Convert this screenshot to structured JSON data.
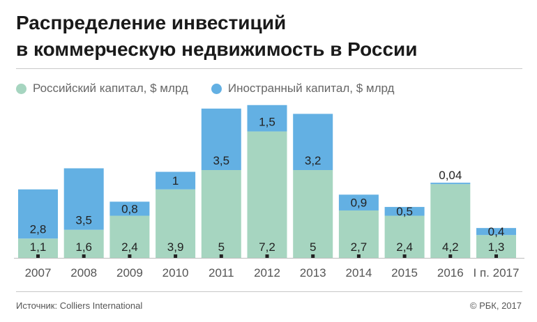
{
  "title_line1": "Распределение инвестиций",
  "title_line2": "в коммерческую недвижимость в России",
  "colors": {
    "russian": "#a6d5c0",
    "foreign": "#63b0e3"
  },
  "footer": {
    "source": "Источник: Colliers International",
    "copyright": "© РБК, 2017"
  },
  "chart_data": {
    "type": "bar",
    "stacked": true,
    "categories": [
      "2007",
      "2008",
      "2009",
      "2010",
      "2011",
      "2012",
      "2013",
      "2014",
      "2015",
      "2016",
      "I п. 2017"
    ],
    "series": [
      {
        "name": "Российский капитал, $ млрд",
        "values": [
          1.1,
          1.6,
          2.4,
          3.9,
          5,
          7.2,
          5,
          2.7,
          2.4,
          4.2,
          1.3
        ],
        "labels": [
          "1,1",
          "1,6",
          "2,4",
          "3,9",
          "5",
          "7,2",
          "5",
          "2,7",
          "2,4",
          "4,2",
          "1,3"
        ]
      },
      {
        "name": "Иностранный капитал, $ млрд",
        "values": [
          2.8,
          3.5,
          0.8,
          1,
          3.5,
          1.5,
          3.2,
          0.9,
          0.5,
          0.04,
          0.4
        ],
        "labels": [
          "2,8",
          "3,5",
          "0,8",
          "1",
          "3,5",
          "1,5",
          "3,2",
          "0,9",
          "0,5",
          "0,04",
          "0,4"
        ]
      }
    ],
    "ylim": [
      0,
      8.7
    ],
    "legend_position": "top-left"
  }
}
